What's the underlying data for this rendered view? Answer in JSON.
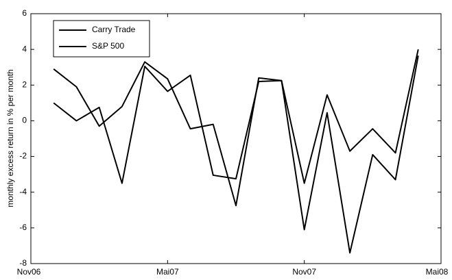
{
  "chart_data": {
    "type": "line",
    "ylabel": "monthly excess return in % per month",
    "x": [
      1,
      2,
      3,
      4,
      5,
      6,
      7,
      8,
      9,
      10,
      11,
      12,
      13,
      14,
      15,
      16,
      17
    ],
    "series": [
      {
        "name": "Carry Trade",
        "color": "#000000",
        "values": [
          2.9,
          1.9,
          -0.3,
          0.8,
          3.3,
          2.35,
          -0.45,
          -0.2,
          -4.75,
          2.4,
          2.25,
          -3.5,
          1.45,
          -1.7,
          -0.45,
          -1.8,
          4.0
        ]
      },
      {
        "name": "S&P 500",
        "color": "#000000",
        "values": [
          1.0,
          0.0,
          0.75,
          -3.5,
          3.05,
          1.65,
          2.55,
          -3.05,
          -3.25,
          2.2,
          2.25,
          -6.1,
          0.45,
          -7.4,
          -1.9,
          -3.3,
          3.65
        ]
      }
    ],
    "xlim": [
      0,
      18
    ],
    "xticks": [
      {
        "value": 0,
        "label": "Nov06"
      },
      {
        "value": 6,
        "label": "Mai07"
      },
      {
        "value": 12,
        "label": "Nov07"
      },
      {
        "value": 18,
        "label": "Mai08"
      }
    ],
    "ylim": [
      -8,
      6
    ],
    "yticks": [
      -8,
      -6,
      -4,
      -2,
      0,
      2,
      4,
      6
    ],
    "legend": "upper left"
  }
}
